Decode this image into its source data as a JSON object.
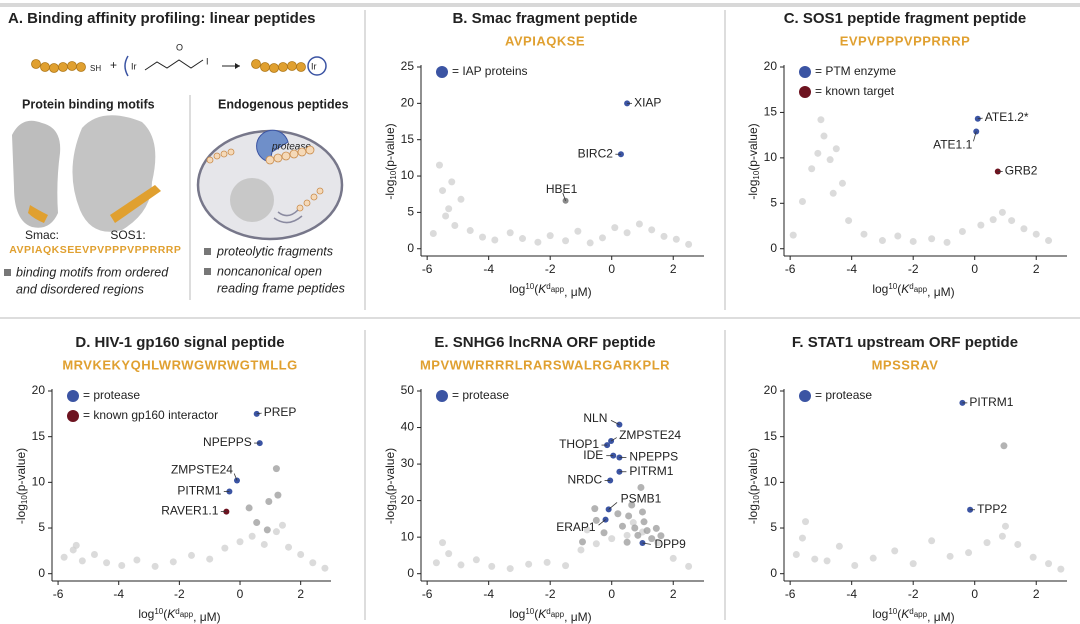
{
  "panel_a": {
    "title": "A. Binding affinity profiling: linear peptides",
    "reaction": {
      "sh": "SH",
      "plus": "+",
      "ir": "Ir",
      "o": "O",
      "i": "I"
    },
    "motifs_heading": "Protein binding motifs",
    "endogenous_heading": "Endogenous peptides",
    "smac_label": "Smac:",
    "smac_seq": "AVPIAQKSE",
    "sos1_label": "SOS1:",
    "sos1_seq": "EVPVPPPVPPRRRP",
    "motifs_note": [
      "binding motifs from ordered",
      "and disordered regions"
    ],
    "protease": "protease",
    "fragments_note": "proteolytic fragments",
    "orf_note": [
      "noncanonical open",
      "reading frame peptides"
    ]
  },
  "chart_data": [
    {
      "type": "scatter",
      "title": "B. Smac fragment peptide",
      "subtitle": "AVPIAQKSE",
      "x_label": [
        "log",
        "10",
        "(",
        "K",
        "d",
        "app",
        ", μM)"
      ],
      "y_label": [
        "-log",
        "10",
        "(p-value)"
      ],
      "xlim": [
        -6.2,
        3
      ],
      "xticks": [
        -6,
        -4,
        -2,
        0,
        2
      ],
      "ylim": [
        -1,
        25
      ],
      "yticks": [
        0,
        5,
        10,
        15,
        20,
        25
      ],
      "series": [
        {
          "color": "#cfcfcf",
          "x": [
            -5.8,
            -5.6,
            -5.5,
            -5.3,
            -5.1,
            -4.9,
            -4.6,
            -4.2,
            -3.8,
            -3.3,
            -2.9,
            -2.4,
            -2,
            -1.5,
            -1.1,
            -0.7,
            -0.3,
            0.1,
            0.5,
            0.9,
            1.3,
            1.7,
            2.1,
            2.5,
            -5.4,
            -5.2
          ],
          "values": [
            2.1,
            11.5,
            8,
            5.5,
            3.2,
            6.8,
            2.5,
            1.6,
            1.2,
            2.2,
            1.4,
            0.9,
            1.8,
            1.1,
            2.4,
            0.8,
            1.5,
            2.9,
            2.2,
            3.4,
            2.6,
            1.7,
            1.3,
            0.6,
            4.5,
            9.2
          ]
        },
        {
          "color": "#8a8a8a",
          "labels": [
            "HBE1"
          ],
          "x": [
            -1.5
          ],
          "values": [
            6.6
          ]
        },
        {
          "name": "= IAP proteins",
          "color": "#3b54a3",
          "labels": [
            "XIAP",
            "BIRC2"
          ],
          "x": [
            0.5,
            0.3
          ],
          "values": [
            20,
            13
          ]
        }
      ]
    },
    {
      "type": "scatter",
      "title": "C. SOS1 peptide fragment peptide",
      "subtitle": "EVPVPPPVPPRRRP",
      "x_label": [
        "log",
        "10",
        "(",
        "K",
        "d",
        "app",
        ", μM)"
      ],
      "y_label": [
        "-log",
        "10",
        "(p-value)"
      ],
      "xlim": [
        -6.2,
        3
      ],
      "xticks": [
        -6,
        -4,
        -2,
        0,
        2
      ],
      "ylim": [
        -0.8,
        20
      ],
      "yticks": [
        0,
        5,
        10,
        15,
        20
      ],
      "series": [
        {
          "color": "#cfcfcf",
          "x": [
            -5.9,
            -5.6,
            -5.3,
            -5.1,
            -4.9,
            -4.7,
            -4.5,
            -4.3,
            -4.1,
            -3.6,
            -3,
            -2.5,
            -2,
            -1.4,
            -0.9,
            -0.4,
            0.2,
            0.6,
            0.9,
            1.2,
            1.6,
            2,
            2.4,
            -5,
            -4.6
          ],
          "values": [
            1.5,
            5.2,
            8.8,
            10.5,
            12.4,
            9.8,
            11,
            7.2,
            3.1,
            1.6,
            0.9,
            1.4,
            0.8,
            1.1,
            0.7,
            1.9,
            2.6,
            3.2,
            4,
            3.1,
            2.2,
            1.6,
            0.9,
            14.2,
            6.1
          ]
        },
        {
          "name": "= PTM enzyme",
          "color": "#3b54a3",
          "labels": [
            "ATE1.2*",
            "ATE1.1"
          ],
          "x": [
            0.1,
            0.05
          ],
          "values": [
            14.3,
            12.9
          ]
        },
        {
          "name": "= known target",
          "color": "#6d1320",
          "labels": [
            "GRB2"
          ],
          "x": [
            0.75
          ],
          "values": [
            8.5
          ]
        }
      ]
    },
    {
      "type": "scatter",
      "title": "D. HIV-1 gp160 signal peptide",
      "subtitle": "MRVKEKYQHLWRWGWRWGTMLLG",
      "x_label": [
        "log",
        "10",
        "(",
        "K",
        "d",
        "app",
        ", μM)"
      ],
      "y_label": [
        "-log",
        "10",
        "(p-value)"
      ],
      "xlim": [
        -6.2,
        3
      ],
      "xticks": [
        -6,
        -4,
        -2,
        0,
        2
      ],
      "ylim": [
        -0.8,
        20
      ],
      "yticks": [
        0,
        5,
        10,
        15,
        20
      ],
      "series": [
        {
          "color": "#cfcfcf",
          "x": [
            -5.8,
            -5.5,
            -5.2,
            -4.8,
            -4.4,
            -3.9,
            -3.4,
            -2.8,
            -2.2,
            -1.6,
            -1,
            -0.5,
            0,
            0.4,
            0.8,
            1.2,
            1.6,
            2,
            2.4,
            2.8,
            -5.4,
            1.4
          ],
          "values": [
            1.8,
            2.6,
            1.4,
            2.1,
            1.2,
            0.9,
            1.5,
            0.8,
            1.3,
            2,
            1.6,
            2.8,
            3.5,
            4.1,
            3.2,
            4.6,
            2.9,
            2.1,
            1.2,
            0.6,
            3.1,
            5.3
          ]
        },
        {
          "color": "#9a9a9a",
          "x": [
            1.2,
            1.25,
            0.95,
            0.3,
            0.55,
            0.9
          ],
          "values": [
            11.5,
            8.6,
            7.9,
            7.2,
            5.6,
            4.8
          ]
        },
        {
          "name": "= protease",
          "color": "#3b54a3",
          "labels": [
            "PREP",
            "NPEPPS",
            "ZMPSTE24",
            "PITRM1"
          ],
          "x": [
            0.55,
            0.65,
            -0.1,
            -0.35
          ],
          "values": [
            17.5,
            14.3,
            10.2,
            9
          ]
        },
        {
          "name": "= known gp160 interactor",
          "color": "#6d1320",
          "labels": [
            "RAVER1.1"
          ],
          "x": [
            -0.45
          ],
          "values": [
            6.8
          ]
        }
      ]
    },
    {
      "type": "scatter",
      "title": "E. SNHG6 lncRNA ORF peptide",
      "subtitle": "MPVWWRRRRLRARSWALRGARKPLR",
      "x_label": [
        "log",
        "10",
        "(",
        "K",
        "d",
        "app",
        ", μM)"
      ],
      "y_label": [
        "-log",
        "10",
        "(p-value)"
      ],
      "xlim": [
        -6.2,
        3
      ],
      "xticks": [
        -6,
        -4,
        -2,
        0,
        2
      ],
      "ylim": [
        -2,
        50
      ],
      "yticks": [
        0,
        10,
        20,
        30,
        40,
        50
      ],
      "series": [
        {
          "color": "#cfcfcf",
          "x": [
            -5.7,
            -5.3,
            -4.9,
            -4.4,
            -3.9,
            -3.3,
            -2.7,
            -2.1,
            -1.5,
            -1,
            -0.5,
            0,
            0.5,
            1,
            1.5,
            2,
            2.5,
            -5.5,
            -0.8,
            0.7
          ],
          "values": [
            3,
            5.5,
            2.4,
            3.8,
            2,
            1.4,
            2.6,
            3.1,
            2.2,
            6.5,
            8.2,
            9.6,
            10.5,
            11.4,
            8.5,
            4.2,
            2,
            8.5,
            12,
            14
          ]
        },
        {
          "color": "#9a9a9a",
          "x": [
            0.95,
            -0.55,
            -0.95,
            -0.25,
            0.35,
            0.55,
            0.75,
            0.85,
            1.05,
            1.15,
            1.3,
            1.45,
            0.5,
            0.2,
            -0.5,
            1.6,
            0.65,
            1.0
          ],
          "values": [
            23.6,
            17.8,
            8.7,
            11.2,
            13,
            15.8,
            12.5,
            10.5,
            14.2,
            11.8,
            9.6,
            12.4,
            8.6,
            16.4,
            14.6,
            10.4,
            18.8,
            16.9
          ]
        },
        {
          "name": "= protease",
          "color": "#3b54a3",
          "labels": [
            "NLN",
            "THOP1",
            "ZMPSTE24",
            "IDE",
            "NPEPPS",
            "PITRM1",
            "NRDC",
            "PSMB1",
            "ERAP1",
            "DPP9"
          ],
          "x": [
            0.25,
            -0.15,
            -0.02,
            0.05,
            0.25,
            0.25,
            -0.05,
            -0.1,
            -0.2,
            1.0
          ],
          "values": [
            40.8,
            35.2,
            36.3,
            32.3,
            31.8,
            27.9,
            25.5,
            17.6,
            14.8,
            8.4
          ]
        }
      ]
    },
    {
      "type": "scatter",
      "title": "F. STAT1 upstream ORF peptide",
      "subtitle": "MPSSRAV",
      "x_label": [
        "log",
        "10",
        "(",
        "K",
        "d",
        "app",
        ", μM)"
      ],
      "y_label": [
        "-log",
        "10",
        "(p-value)"
      ],
      "xlim": [
        -6.2,
        3
      ],
      "xticks": [
        -6,
        -4,
        -2,
        0,
        2
      ],
      "ylim": [
        -0.8,
        20
      ],
      "yticks": [
        0,
        5,
        10,
        15,
        20
      ],
      "series": [
        {
          "color": "#cfcfcf",
          "x": [
            -5.8,
            -5.5,
            -5.2,
            -4.8,
            -4.4,
            -3.9,
            -3.3,
            -2.6,
            -2,
            -1.4,
            -0.8,
            -0.2,
            0.4,
            0.9,
            1.4,
            1.9,
            2.4,
            2.8,
            -5.6,
            1
          ],
          "values": [
            2.1,
            5.7,
            1.6,
            1.4,
            3,
            0.9,
            1.7,
            2.5,
            1.1,
            3.6,
            1.9,
            2.3,
            3.4,
            4.1,
            3.2,
            1.8,
            1.1,
            0.5,
            3.9,
            5.2
          ]
        },
        {
          "color": "#9a9a9a",
          "x": [
            0.95
          ],
          "values": [
            14
          ]
        },
        {
          "name": "= protease",
          "color": "#3b54a3",
          "labels": [
            "PITRM1",
            "TPP2"
          ],
          "x": [
            -0.4,
            -0.15
          ],
          "values": [
            18.7,
            7
          ]
        }
      ]
    }
  ]
}
